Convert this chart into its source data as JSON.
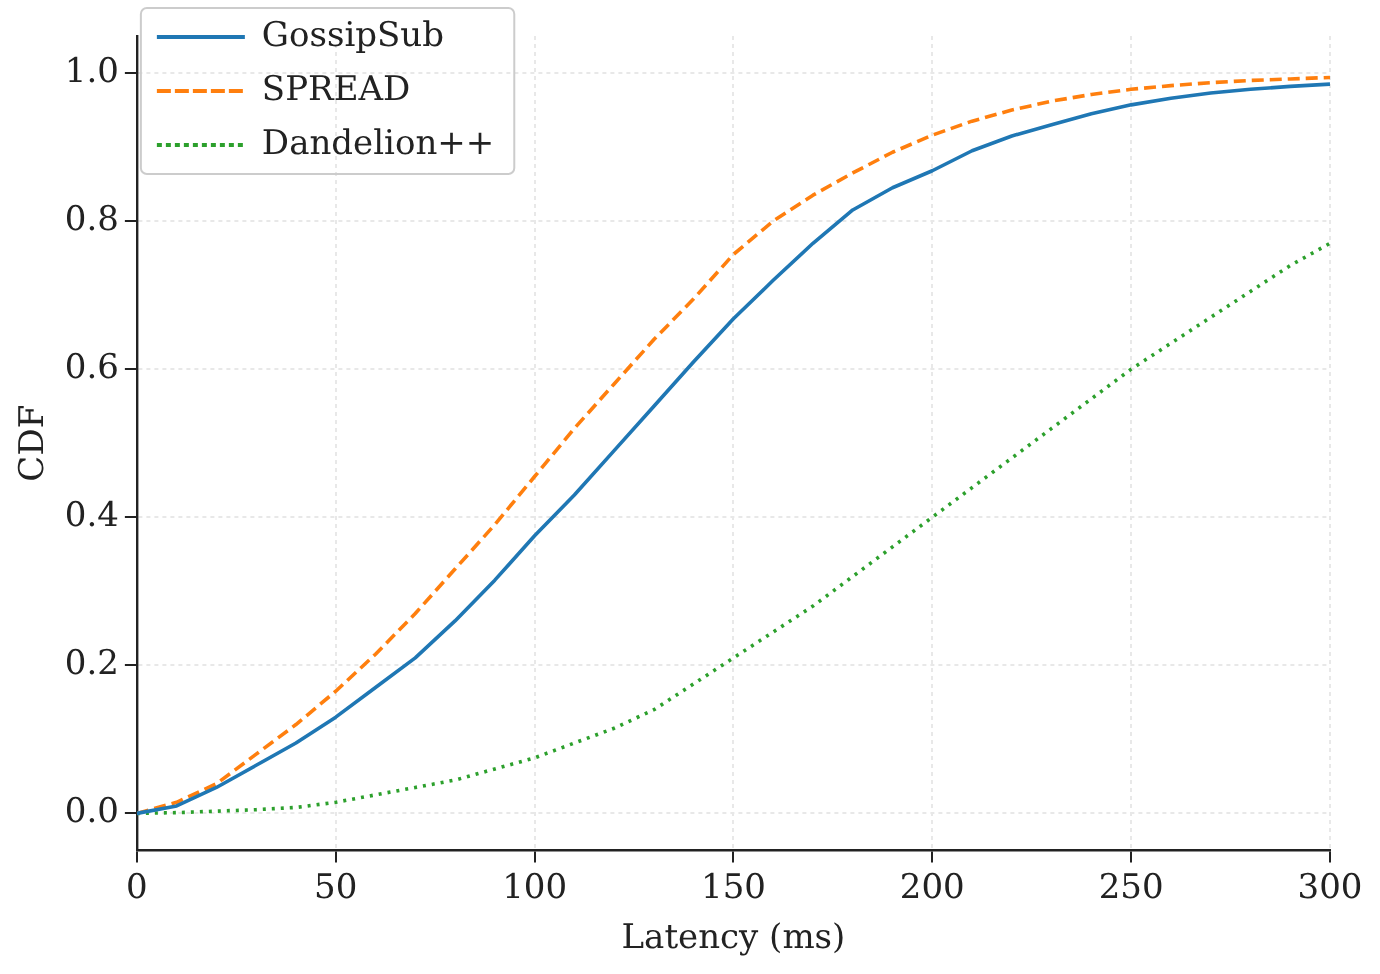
{
  "chart_data": {
    "type": "line",
    "xlabel": "Latency (ms)",
    "ylabel": "CDF",
    "x": [
      0,
      10,
      20,
      30,
      40,
      50,
      60,
      70,
      80,
      90,
      100,
      110,
      120,
      130,
      140,
      150,
      160,
      170,
      180,
      190,
      200,
      210,
      220,
      230,
      240,
      250,
      260,
      270,
      280,
      290,
      300
    ],
    "series": [
      {
        "name": "GossipSub",
        "color": "#1f77b4",
        "line_style": "solid",
        "values": [
          0,
          0.01,
          0.035,
          0.065,
          0.095,
          0.13,
          0.17,
          0.21,
          0.26,
          0.315,
          0.375,
          0.43,
          0.49,
          0.55,
          0.61,
          0.668,
          0.72,
          0.77,
          0.815,
          0.845,
          0.868,
          0.895,
          0.915,
          0.93,
          0.945,
          0.957,
          0.966,
          0.973,
          0.978,
          0.982,
          0.985
        ]
      },
      {
        "name": "SPREAD",
        "color": "#ff7f0e",
        "line_style": "dashed",
        "values": [
          0,
          0.015,
          0.04,
          0.08,
          0.12,
          0.165,
          0.215,
          0.27,
          0.33,
          0.39,
          0.455,
          0.52,
          0.58,
          0.64,
          0.695,
          0.755,
          0.8,
          0.835,
          0.865,
          0.893,
          0.916,
          0.935,
          0.95,
          0.962,
          0.971,
          0.978,
          0.983,
          0.987,
          0.99,
          0.992,
          0.994
        ]
      },
      {
        "name": "Dandelion++",
        "color": "#2ca02c",
        "line_style": "dotted",
        "values": [
          0,
          0.001,
          0.003,
          0.005,
          0.008,
          0.015,
          0.025,
          0.035,
          0.045,
          0.06,
          0.075,
          0.095,
          0.115,
          0.14,
          0.175,
          0.21,
          0.245,
          0.28,
          0.32,
          0.36,
          0.4,
          0.44,
          0.48,
          0.52,
          0.56,
          0.6,
          0.635,
          0.67,
          0.705,
          0.74,
          0.77
        ]
      }
    ],
    "xlim": [
      0,
      300
    ],
    "xticks": [
      0,
      50,
      100,
      150,
      200,
      250,
      300
    ],
    "ylim": [
      -0.05,
      1.05
    ],
    "yticks": [
      {
        "value": 0,
        "label": "0.0"
      },
      {
        "value": 0.2,
        "label": "0.2"
      },
      {
        "value": 0.4,
        "label": "0.4"
      },
      {
        "value": 0.6,
        "label": "0.6"
      },
      {
        "value": 0.8,
        "label": "0.8"
      },
      {
        "value": 1,
        "label": "1.0"
      }
    ],
    "grid": true,
    "legend": "top left",
    "marker": "none"
  }
}
